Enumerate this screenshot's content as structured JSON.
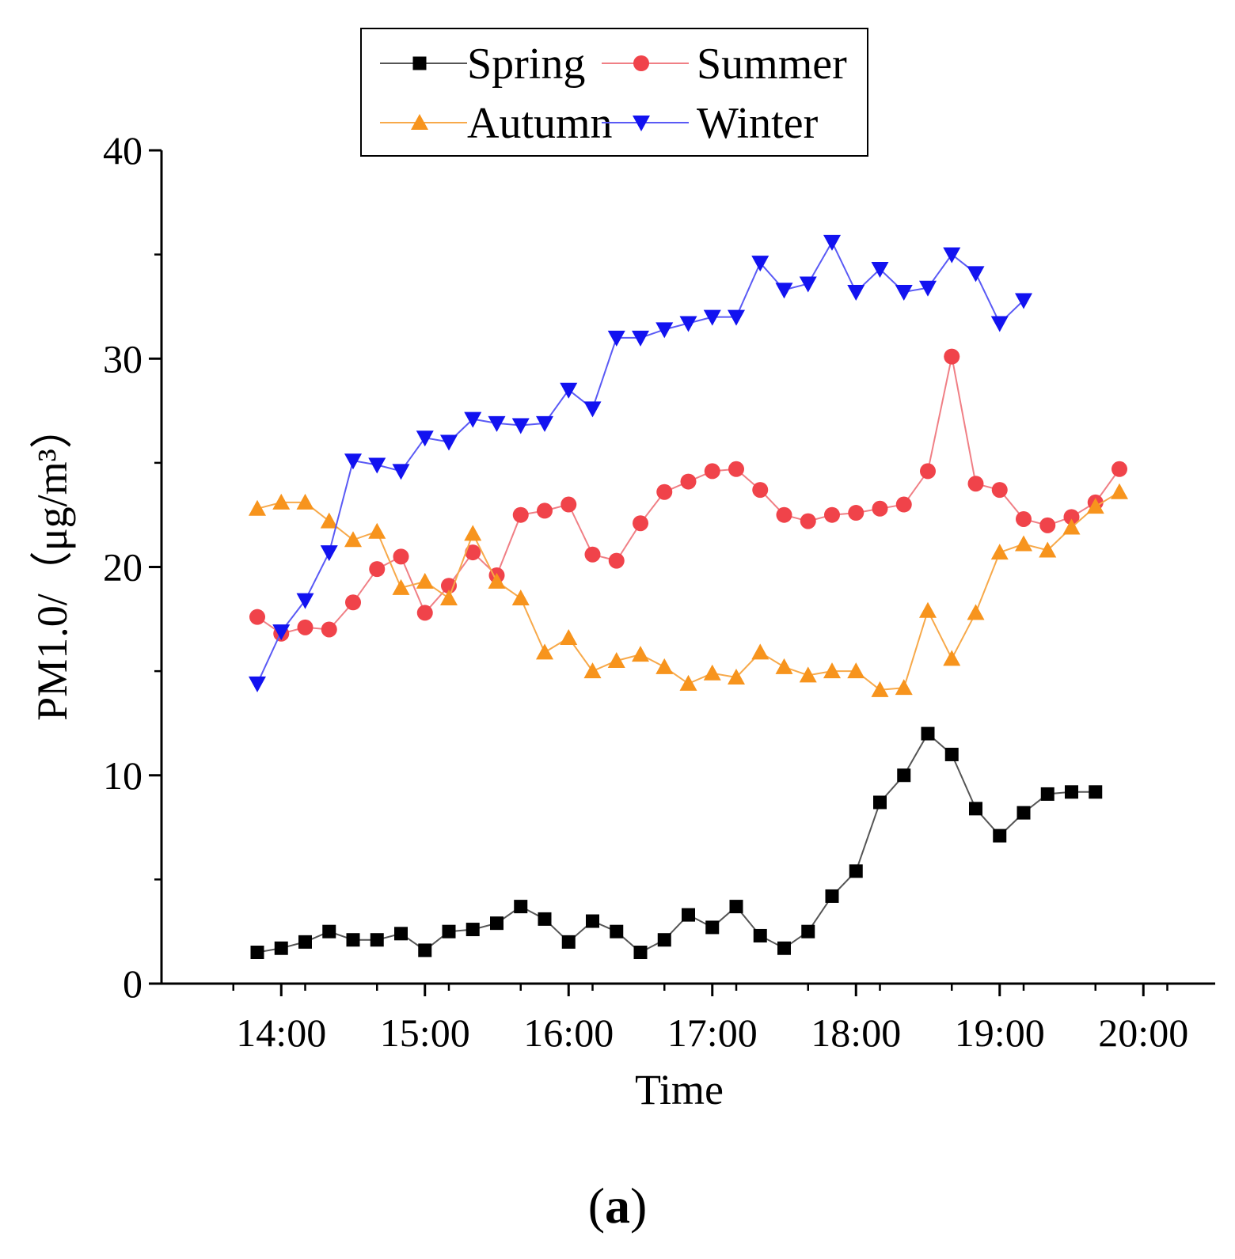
{
  "chart_data": {
    "type": "line",
    "title": "",
    "panel_label": "a",
    "xlabel": "Time",
    "ylabel": "PM1.0/（μg/m³）",
    "ylim": [
      0,
      40
    ],
    "yticks": [
      0,
      10,
      20,
      30,
      40
    ],
    "y_minor_step": 5,
    "xlim_minutes": [
      790,
      1230
    ],
    "xticks": [
      {
        "label": "14:00",
        "minute": 840
      },
      {
        "label": "15:00",
        "minute": 900
      },
      {
        "label": "16:00",
        "minute": 960
      },
      {
        "label": "17:00",
        "minute": 1020
      },
      {
        "label": "18:00",
        "minute": 1080
      },
      {
        "label": "19:00",
        "minute": 1140
      },
      {
        "label": "20:00",
        "minute": 1200
      }
    ],
    "x_minor_step_minutes": 10,
    "x_start_minute": 830,
    "x_step_minutes": 10,
    "legend_position": "top-center",
    "series": [
      {
        "name": "Spring",
        "color": "#000000",
        "line_color": "#555555",
        "marker": "square",
        "values": [
          1.5,
          1.7,
          2.0,
          2.5,
          2.1,
          2.1,
          2.4,
          1.6,
          2.5,
          2.6,
          2.9,
          3.7,
          3.1,
          2.0,
          3.0,
          2.5,
          1.5,
          2.1,
          3.3,
          2.7,
          3.7,
          2.3,
          1.7,
          2.5,
          4.2,
          5.4,
          8.7,
          10.0,
          12.0,
          11.0,
          8.4,
          7.1,
          8.2,
          9.1,
          9.2,
          9.2
        ]
      },
      {
        "name": "Summer",
        "color": "#f0434a",
        "line_color": "#f07f85",
        "marker": "circle",
        "values": [
          17.6,
          16.8,
          17.1,
          17.0,
          18.3,
          19.9,
          20.5,
          17.8,
          19.1,
          20.7,
          19.6,
          22.5,
          22.7,
          23.0,
          20.6,
          20.3,
          22.1,
          23.6,
          24.1,
          24.6,
          24.7,
          23.7,
          22.5,
          22.2,
          22.5,
          22.6,
          22.8,
          23.0,
          24.6,
          30.1,
          24.0,
          23.7,
          22.3,
          22.0,
          22.4,
          23.1,
          24.7
        ]
      },
      {
        "name": "Autumn",
        "color": "#f7941d",
        "line_color": "#f7a94a",
        "marker": "triangle-up",
        "values": [
          22.8,
          23.1,
          23.1,
          22.2,
          21.3,
          21.7,
          19.0,
          19.3,
          18.5,
          21.6,
          19.3,
          18.5,
          15.9,
          16.6,
          15.0,
          15.5,
          15.8,
          15.2,
          14.4,
          14.9,
          14.7,
          15.9,
          15.2,
          14.8,
          15.0,
          15.0,
          14.1,
          14.2,
          17.9,
          15.6,
          17.8,
          20.7,
          21.1,
          20.8,
          21.9,
          22.9,
          23.6
        ]
      },
      {
        "name": "Winter",
        "color": "#1212f0",
        "line_color": "#5a5af5",
        "marker": "triangle-down",
        "values": [
          14.4,
          16.9,
          18.4,
          20.7,
          25.1,
          24.9,
          24.6,
          26.2,
          26.0,
          27.1,
          26.9,
          26.8,
          26.9,
          28.5,
          27.6,
          31.0,
          31.0,
          31.4,
          31.7,
          32.0,
          32.0,
          34.6,
          33.3,
          33.6,
          35.6,
          33.2,
          34.3,
          33.2,
          33.4,
          35.0,
          34.1,
          31.7,
          32.8
        ]
      }
    ]
  }
}
